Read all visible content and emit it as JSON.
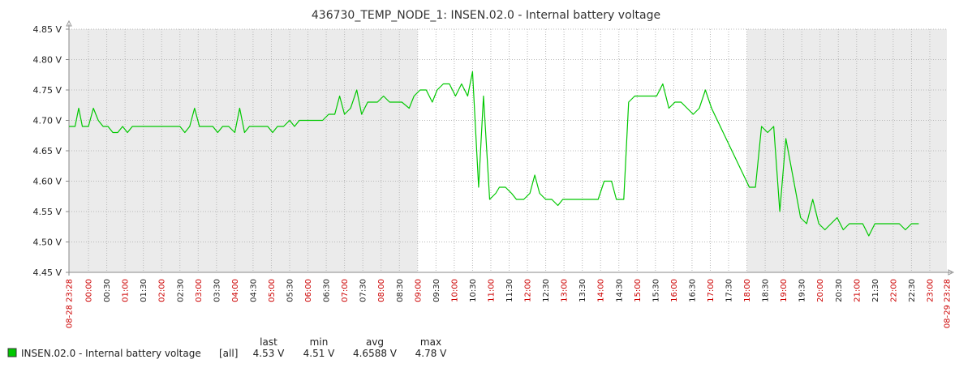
{
  "chart_data": {
    "type": "line",
    "title": "436730_TEMP_NODE_1: INSEN.02.0 - Internal battery voltage",
    "y_unit": "V",
    "ylim": [
      4.45,
      4.85
    ],
    "y_ticks": [
      "4.45 V",
      "4.50 V",
      "4.55 V",
      "4.60 V",
      "4.65 V",
      "4.70 V",
      "4.75 V",
      "4.80 V",
      "4.85 V"
    ],
    "x_start_label": "08-28 23:28",
    "x_end_label": "08-29 23:28",
    "x_tick_labels": [
      "00:00",
      "00:30",
      "01:00",
      "01:30",
      "02:00",
      "02:30",
      "03:00",
      "03:30",
      "04:00",
      "04:30",
      "05:00",
      "05:30",
      "06:00",
      "06:30",
      "07:00",
      "07:30",
      "08:00",
      "08:30",
      "09:00",
      "09:30",
      "10:00",
      "10:30",
      "11:00",
      "11:30",
      "12:00",
      "12:30",
      "13:00",
      "13:30",
      "14:00",
      "14:30",
      "15:00",
      "15:30",
      "16:00",
      "16:30",
      "17:00",
      "17:30",
      "18:00",
      "18:30",
      "19:00",
      "19:30",
      "20:00",
      "20:30",
      "21:00",
      "21:30",
      "22:00",
      "22:30",
      "23:00"
    ],
    "major_tick_labels": [
      "00:00",
      "01:00",
      "02:00",
      "03:00",
      "04:00",
      "05:00",
      "06:00",
      "07:00",
      "08:00",
      "09:00",
      "10:00",
      "11:00",
      "12:00",
      "13:00",
      "14:00",
      "15:00",
      "16:00",
      "17:00",
      "18:00",
      "19:00",
      "20:00",
      "21:00",
      "22:00",
      "23:00"
    ],
    "night_shading": "gray background before 09:00 and after 18:00",
    "grid": true,
    "series": [
      {
        "name": "INSEN.02.0 - Internal battery voltage",
        "color": "#00c800",
        "points": [
          [
            "23:28",
            4.69
          ],
          [
            "23:38",
            4.69
          ],
          [
            "23:44",
            4.72
          ],
          [
            "23:50",
            4.69
          ],
          [
            "24:00",
            4.69
          ],
          [
            "24:08",
            4.72
          ],
          [
            "24:16",
            4.7
          ],
          [
            "24:24",
            4.69
          ],
          [
            "24:32",
            4.69
          ],
          [
            "24:40",
            4.68
          ],
          [
            "24:48",
            4.68
          ],
          [
            "24:56",
            4.69
          ],
          [
            "25:04",
            4.68
          ],
          [
            "25:12",
            4.69
          ],
          [
            "25:20",
            4.69
          ],
          [
            "26:00",
            4.69
          ],
          [
            "26:30",
            4.69
          ],
          [
            "26:38",
            4.68
          ],
          [
            "26:46",
            4.69
          ],
          [
            "26:54",
            4.72
          ],
          [
            "27:02",
            4.69
          ],
          [
            "27:10",
            4.69
          ],
          [
            "27:24",
            4.69
          ],
          [
            "27:32",
            4.68
          ],
          [
            "27:40",
            4.69
          ],
          [
            "27:50",
            4.69
          ],
          [
            "28:00",
            4.68
          ],
          [
            "28:08",
            4.72
          ],
          [
            "28:16",
            4.68
          ],
          [
            "28:24",
            4.69
          ],
          [
            "28:40",
            4.69
          ],
          [
            "28:54",
            4.69
          ],
          [
            "29:02",
            4.68
          ],
          [
            "29:10",
            4.69
          ],
          [
            "29:20",
            4.69
          ],
          [
            "29:30",
            4.7
          ],
          [
            "29:38",
            4.69
          ],
          [
            "29:46",
            4.7
          ],
          [
            "30:00",
            4.7
          ],
          [
            "30:24",
            4.7
          ],
          [
            "30:34",
            4.71
          ],
          [
            "30:44",
            4.71
          ],
          [
            "30:52",
            4.74
          ],
          [
            "31:00",
            4.71
          ],
          [
            "31:10",
            4.72
          ],
          [
            "31:20",
            4.75
          ],
          [
            "31:28",
            4.71
          ],
          [
            "31:38",
            4.73
          ],
          [
            "31:54",
            4.73
          ],
          [
            "32:04",
            4.74
          ],
          [
            "32:14",
            4.73
          ],
          [
            "32:34",
            4.73
          ],
          [
            "32:46",
            4.72
          ],
          [
            "32:54",
            4.74
          ],
          [
            "33:04",
            4.75
          ],
          [
            "33:14",
            4.75
          ],
          [
            "33:24",
            4.73
          ],
          [
            "33:32",
            4.75
          ],
          [
            "33:42",
            4.76
          ],
          [
            "33:52",
            4.76
          ],
          [
            "34:02",
            4.74
          ],
          [
            "34:12",
            4.76
          ],
          [
            "34:22",
            4.74
          ],
          [
            "34:30",
            4.78
          ],
          [
            "34:40",
            4.59
          ],
          [
            "34:48",
            4.74
          ],
          [
            "34:58",
            4.57
          ],
          [
            "35:08",
            4.58
          ],
          [
            "35:14",
            4.59
          ],
          [
            "35:24",
            4.59
          ],
          [
            "35:34",
            4.58
          ],
          [
            "35:42",
            4.57
          ],
          [
            "35:54",
            4.57
          ],
          [
            "36:04",
            4.58
          ],
          [
            "36:12",
            4.61
          ],
          [
            "36:20",
            4.58
          ],
          [
            "36:30",
            4.57
          ],
          [
            "36:40",
            4.57
          ],
          [
            "36:50",
            4.56
          ],
          [
            "36:58",
            4.57
          ],
          [
            "37:10",
            4.57
          ],
          [
            "37:40",
            4.57
          ],
          [
            "37:56",
            4.57
          ],
          [
            "38:06",
            4.6
          ],
          [
            "38:18",
            4.6
          ],
          [
            "38:26",
            4.57
          ],
          [
            "38:38",
            4.57
          ],
          [
            "38:46",
            4.73
          ],
          [
            "38:56",
            4.74
          ],
          [
            "39:20",
            4.74
          ],
          [
            "39:32",
            4.74
          ],
          [
            "39:42",
            4.76
          ],
          [
            "39:52",
            4.72
          ],
          [
            "40:02",
            4.73
          ],
          [
            "40:12",
            4.73
          ],
          [
            "40:22",
            4.72
          ],
          [
            "40:32",
            4.71
          ],
          [
            "40:42",
            4.72
          ],
          [
            "40:52",
            4.75
          ],
          [
            "41:02",
            4.72
          ],
          [
            "42:04",
            4.59
          ],
          [
            "42:14",
            4.59
          ],
          [
            "42:24",
            4.69
          ],
          [
            "42:34",
            4.68
          ],
          [
            "42:44",
            4.69
          ],
          [
            "42:54",
            4.55
          ],
          [
            "43:04",
            4.67
          ],
          [
            "43:28",
            4.54
          ],
          [
            "43:38",
            4.53
          ],
          [
            "43:48",
            4.57
          ],
          [
            "43:58",
            4.53
          ],
          [
            "44:08",
            4.52
          ],
          [
            "44:18",
            4.53
          ],
          [
            "44:28",
            4.54
          ],
          [
            "44:38",
            4.52
          ],
          [
            "44:48",
            4.53
          ],
          [
            "45:10",
            4.53
          ],
          [
            "45:20",
            4.51
          ],
          [
            "45:30",
            4.53
          ],
          [
            "46:00",
            4.53
          ],
          [
            "46:10",
            4.53
          ],
          [
            "46:20",
            4.52
          ],
          [
            "46:30",
            4.53
          ],
          [
            "46:42",
            4.53
          ]
        ]
      }
    ]
  },
  "legend": {
    "color": "#00c800",
    "series_label": "INSEN.02.0 - Internal battery voltage",
    "scope": "[all]",
    "headers": {
      "last": "last",
      "min": "min",
      "avg": "avg",
      "max": "max"
    },
    "values": {
      "last": "4.53 V",
      "min": "4.51 V",
      "avg": "4.6588 V",
      "max": "4.78 V"
    }
  }
}
